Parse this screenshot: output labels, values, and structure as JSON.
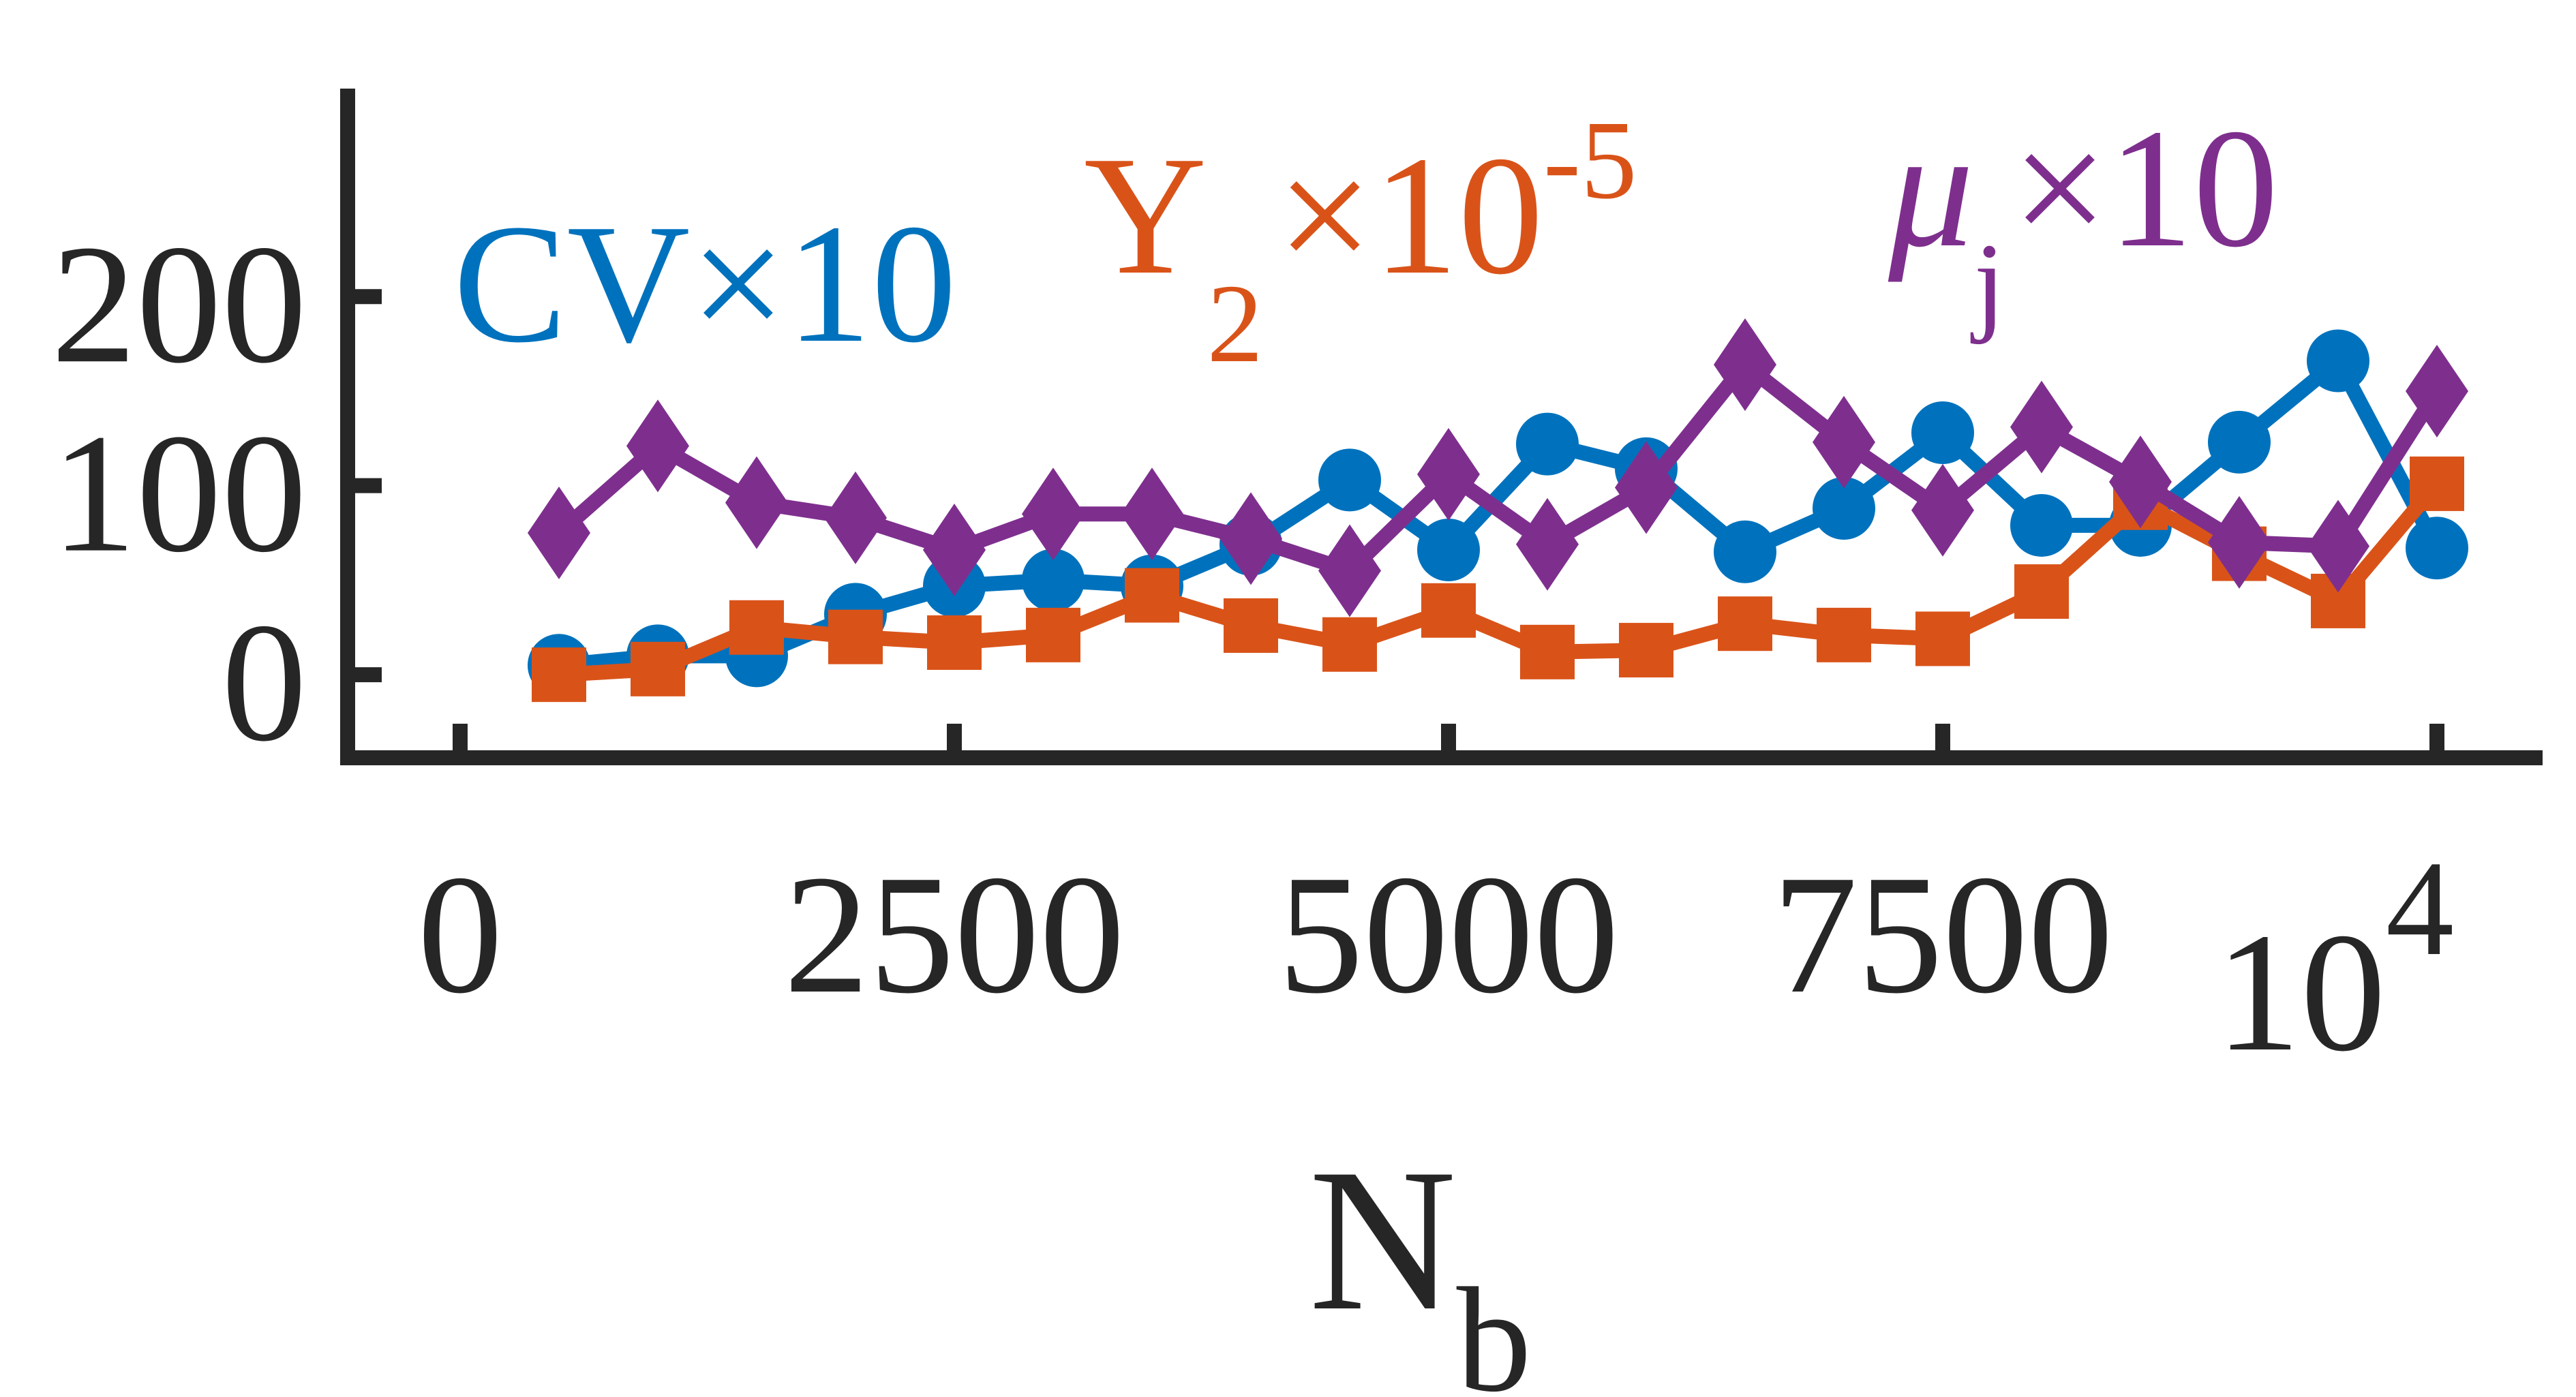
{
  "chart_data": {
    "type": "line",
    "xlabel": "N",
    "xlabel_sub": "b",
    "x_exponent_label": "10",
    "x_exponent_sup": "4",
    "xlim": [
      -500,
      10500
    ],
    "ylim": [
      -45,
      310
    ],
    "x_ticks": [
      0,
      2500,
      5000,
      7500,
      10000
    ],
    "x_tick_labels": [
      "0",
      "2500",
      "5000",
      "7500",
      ""
    ],
    "y_ticks": [
      0,
      100,
      200
    ],
    "y_tick_labels": [
      "0",
      "100",
      "200"
    ],
    "grid": false,
    "x": [
      500,
      1000,
      1500,
      2000,
      2500,
      3000,
      3500,
      4000,
      4500,
      5000,
      5500,
      6000,
      6500,
      7000,
      7500,
      8000,
      8500,
      9000,
      9500,
      10000
    ],
    "series": [
      {
        "name": "CV×10",
        "label_main": "CV×10",
        "color": "#0072BD",
        "marker": "circle",
        "values": [
          5,
          10,
          10,
          32,
          47,
          50,
          47,
          69,
          103,
          66,
          122,
          109,
          65,
          88,
          128,
          79,
          79,
          123,
          166,
          67
        ]
      },
      {
        "name": "Y2×10-5",
        "label_main": "Y",
        "label_sub": "2",
        "label_tail": "×10",
        "label_sup": "-5",
        "color": "#D95319",
        "marker": "square",
        "values": [
          0,
          3,
          25,
          20,
          17,
          21,
          42,
          26,
          16,
          34,
          12,
          13,
          27,
          21,
          19,
          44,
          91,
          64,
          39,
          101
        ]
      },
      {
        "name": "μj×10",
        "label_main": "μ",
        "label_sub": "j",
        "label_tail": "×10",
        "color": "#7E2F8E",
        "marker": "diamond",
        "values": [
          75,
          121,
          91,
          83,
          66,
          85,
          85,
          72,
          55,
          106,
          69,
          99,
          164,
          123,
          87,
          131,
          102,
          70,
          68,
          150
        ]
      }
    ]
  }
}
